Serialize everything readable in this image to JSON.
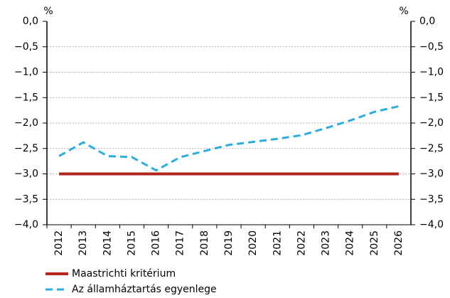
{
  "chart_data": {
    "type": "line",
    "y_unit": "%",
    "y2_unit": "%",
    "categories": [
      "2012",
      "2013",
      "2014",
      "2015",
      "2016",
      "2017",
      "2018",
      "2019",
      "2020",
      "2021",
      "2022",
      "2023",
      "2024",
      "2025",
      "2026"
    ],
    "series": [
      {
        "name": "Maastrichti kritérium",
        "color": "#b3261e",
        "dashed": false,
        "values": [
          -3,
          -3,
          -3,
          -3,
          -3,
          -3,
          -3,
          -3,
          -3,
          -3,
          -3,
          -3,
          -3,
          -3,
          -3
        ]
      },
      {
        "name": "Az államháztartás egyenlege",
        "color": "#2aaee0",
        "dashed": true,
        "values": [
          -2.65,
          -2.38,
          -2.65,
          -2.67,
          -2.93,
          -2.67,
          -2.55,
          -2.43,
          -2.37,
          -2.31,
          -2.24,
          -2.1,
          -1.95,
          -1.78,
          -1.67
        ]
      }
    ],
    "ylim": [
      -4,
      0
    ],
    "yticks": [
      {
        "value": 0,
        "label": "0,0"
      },
      {
        "value": -0.5,
        "label": "−0,5"
      },
      {
        "value": -1,
        "label": "−1,0"
      },
      {
        "value": -1.5,
        "label": "−1,5"
      },
      {
        "value": -2,
        "label": "−2,0"
      },
      {
        "value": -2.5,
        "label": "−2,5"
      },
      {
        "value": -3,
        "label": "−3,0"
      },
      {
        "value": -3.5,
        "label": "−3,5"
      },
      {
        "value": -4,
        "label": "−4,0"
      }
    ],
    "y2lim": [
      -4,
      0
    ],
    "y2ticks": [
      {
        "value": 0,
        "label": "0,0"
      },
      {
        "value": -0.5,
        "label": "−0,5"
      },
      {
        "value": -1,
        "label": "−1,0"
      },
      {
        "value": -1.5,
        "label": "−1,5"
      },
      {
        "value": -2,
        "label": "−2,0"
      },
      {
        "value": -2.5,
        "label": "−2,5"
      },
      {
        "value": -3,
        "label": "−3,0"
      },
      {
        "value": -3.5,
        "label": "−3,5"
      },
      {
        "value": -4,
        "label": "−4,0"
      }
    ],
    "grid": true
  }
}
